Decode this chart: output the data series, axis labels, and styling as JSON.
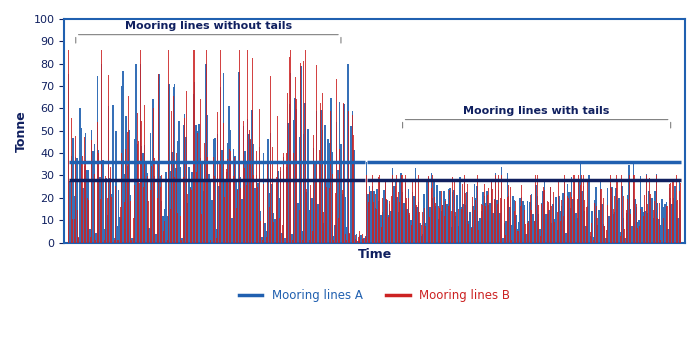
{
  "xlabel": "Time",
  "ylabel": "Tonne",
  "ylim": [
    0,
    100
  ],
  "yticks": [
    0,
    10,
    20,
    30,
    40,
    50,
    60,
    70,
    80,
    90,
    100
  ],
  "color_A": "#2060B0",
  "color_B": "#CC2222",
  "mean_line_color": "#102060",
  "mean_without_A": 36.0,
  "mean_without_B": 28.0,
  "mean_with_A": 36.0,
  "mean_with_B": 28.0,
  "annotation_without_tails": "Mooring lines without tails",
  "annotation_with_tails": "Mooring lines with tails",
  "legend_A": "Mooring lines A",
  "legend_B": "Mooring lines B",
  "spine_color": "#2060B0",
  "n_without": 200,
  "n_with": 220,
  "n_transition": 8,
  "seed": 7
}
